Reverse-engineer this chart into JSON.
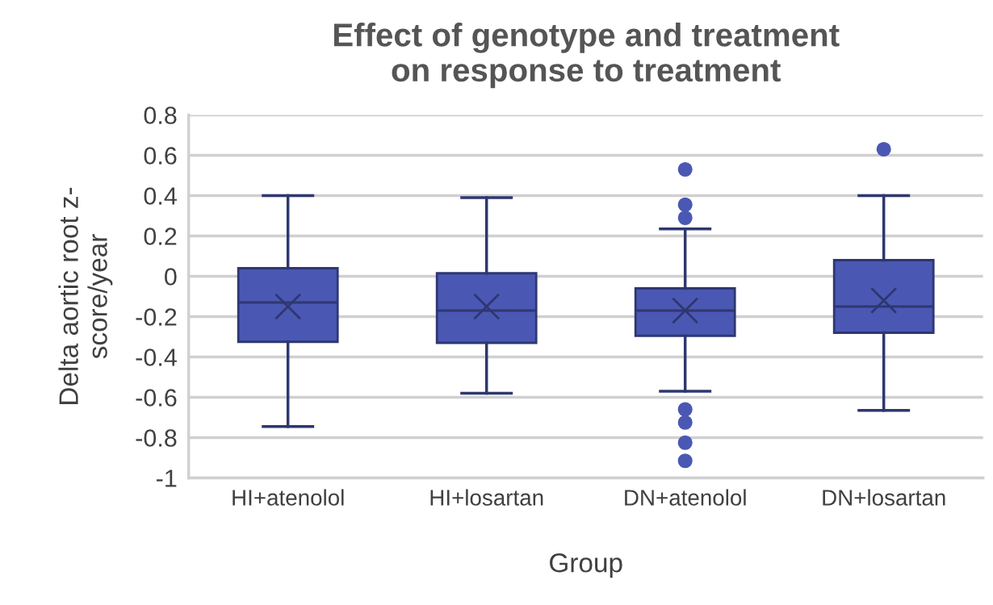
{
  "chart_data": {
    "type": "box",
    "title": "Effect of genotype and treatment\non response to treatment",
    "xlabel": "Group",
    "ylabel": "Delta aortic root z-\nscore/year",
    "categories": [
      "HI+atenolol",
      "HI+losartan",
      "DN+atenolol",
      "DN+losartan"
    ],
    "series": [
      {
        "color": "#4a58b4",
        "boxes": [
          {
            "low": -0.745,
            "q1": -0.325,
            "median": -0.13,
            "q3": 0.04,
            "high": 0.4,
            "mean": -0.15
          },
          {
            "low": -0.58,
            "q1": -0.33,
            "median": -0.17,
            "q3": 0.015,
            "high": 0.39,
            "mean": -0.15
          },
          {
            "low": -0.57,
            "q1": -0.295,
            "median": -0.17,
            "q3": -0.06,
            "high": 0.235,
            "mean": -0.17,
            "outliers": [
              0.53,
              0.355,
              0.29,
              -0.66,
              -0.725,
              -0.825,
              -0.915
            ]
          },
          {
            "low": -0.665,
            "q1": -0.28,
            "median": -0.15,
            "q3": 0.08,
            "high": 0.4,
            "mean": -0.12,
            "outliers": [
              0.63
            ]
          }
        ]
      }
    ],
    "ylim": [
      -1,
      0.8
    ],
    "yticks": [
      {
        "value": 0.8,
        "label": "0.8"
      },
      {
        "value": 0.6,
        "label": "0.6"
      },
      {
        "value": 0.4,
        "label": "0.4"
      },
      {
        "value": 0.2,
        "label": "0.2"
      },
      {
        "value": 0,
        "label": "0"
      },
      {
        "value": -0.2,
        "label": "-0.2"
      },
      {
        "value": -0.4,
        "label": "-0.4"
      },
      {
        "value": -0.6,
        "label": "-0.6"
      },
      {
        "value": -0.8,
        "label": "-0.8"
      },
      {
        "value": -1,
        "label": "-1"
      }
    ],
    "grid": "y"
  }
}
